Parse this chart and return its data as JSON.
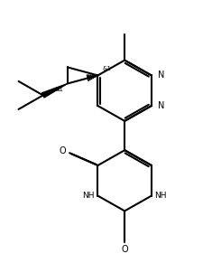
{
  "background_color": "#ffffff",
  "line_color": "#000000",
  "line_width": 1.5,
  "figsize": [
    2.35,
    2.91
  ],
  "dpi": 100,
  "xlim": [
    0.0,
    9.0
  ],
  "ylim": [
    -1.2,
    10.0
  ]
}
